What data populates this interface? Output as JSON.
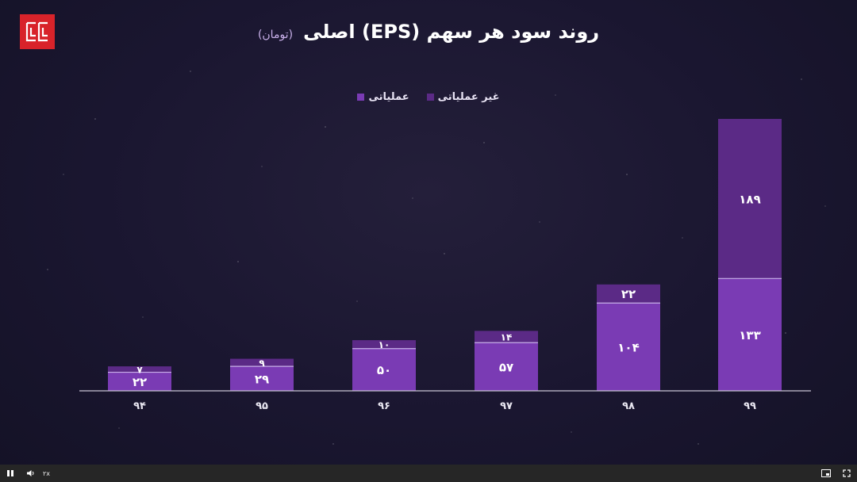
{
  "header": {
    "title": "روند سود هر سهم (EPS) اصلی",
    "subtitle": "(تومان)"
  },
  "legend": {
    "items": [
      {
        "label": "غیر عملیاتی",
        "color": "#5b2a86"
      },
      {
        "label": "عملیاتی",
        "color": "#7a3bb4"
      }
    ]
  },
  "colors": {
    "operating": "#7a3bb4",
    "non_operating": "#5b2a86",
    "axis": "#c8c4d4"
  },
  "chart_data": {
    "type": "bar",
    "stacked": true,
    "categories": [
      "۹۴",
      "۹۵",
      "۹۶",
      "۹۷",
      "۹۸",
      "۹۹"
    ],
    "series": [
      {
        "name": "عملیاتی",
        "values": [
          22,
          29,
          50,
          57,
          104,
          133
        ],
        "labels": [
          "۲۲",
          "۲۹",
          "۵۰",
          "۵۷",
          "۱۰۴",
          "۱۳۳"
        ]
      },
      {
        "name": "غیر عملیاتی",
        "values": [
          7,
          9,
          10,
          14,
          22,
          189
        ],
        "labels": [
          "۷",
          "۹",
          "۱۰",
          "۱۴",
          "۲۲",
          "۱۸۹"
        ]
      }
    ],
    "title": "روند سود هر سهم (EPS) اصلی",
    "ylabel": "",
    "xlabel": "",
    "ylim": [
      0,
      322
    ],
    "grid": false,
    "legend_position": "top-center"
  },
  "player": {
    "speed_label": "۲x",
    "play_icon": "pause-icon",
    "volume_icon": "volume-icon",
    "pip_icon": "pip-icon",
    "fullscreen_icon": "fullscreen-icon"
  }
}
